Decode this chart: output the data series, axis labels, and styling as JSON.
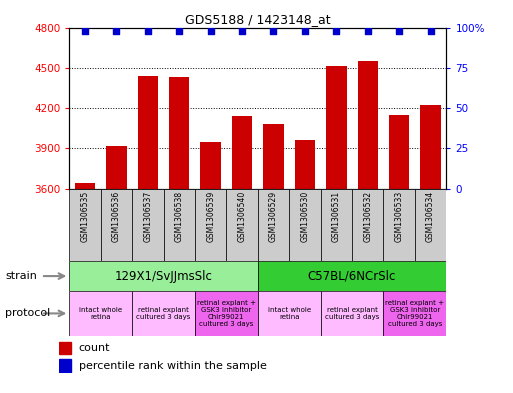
{
  "title": "GDS5188 / 1423148_at",
  "samples": [
    "GSM1306535",
    "GSM1306536",
    "GSM1306537",
    "GSM1306538",
    "GSM1306539",
    "GSM1306540",
    "GSM1306529",
    "GSM1306530",
    "GSM1306531",
    "GSM1306532",
    "GSM1306533",
    "GSM1306534"
  ],
  "counts": [
    3640,
    3920,
    4440,
    4430,
    3950,
    4140,
    4080,
    3960,
    4510,
    4550,
    4150,
    4220
  ],
  "ylim_left": [
    3600,
    4800
  ],
  "ylim_right": [
    0,
    100
  ],
  "yticks_left": [
    3600,
    3900,
    4200,
    4500,
    4800
  ],
  "yticks_right": [
    0,
    25,
    50,
    75,
    100
  ],
  "bar_color": "#cc0000",
  "dot_color": "#0000cc",
  "strain_groups": [
    {
      "label": "129X1/SvJJmsSlc",
      "start": 0,
      "end": 6,
      "color": "#99ee99"
    },
    {
      "label": "C57BL/6NCrSlc",
      "start": 6,
      "end": 12,
      "color": "#33cc33"
    }
  ],
  "protocol_groups": [
    {
      "label": "intact whole\nretina",
      "start": 0,
      "end": 2,
      "color": "#ffbbff"
    },
    {
      "label": "retinal explant\ncultured 3 days",
      "start": 2,
      "end": 4,
      "color": "#ffbbff"
    },
    {
      "label": "retinal explant +\nGSK3 inhibitor\nChir99021\ncultured 3 days",
      "start": 4,
      "end": 6,
      "color": "#ee66ee"
    },
    {
      "label": "intact whole\nretina",
      "start": 6,
      "end": 8,
      "color": "#ffbbff"
    },
    {
      "label": "retinal explant\ncultured 3 days",
      "start": 8,
      "end": 10,
      "color": "#ffbbff"
    },
    {
      "label": "retinal explant +\nGSK3 inhibitor\nChir99021\ncultured 3 days",
      "start": 10,
      "end": 12,
      "color": "#ee66ee"
    }
  ],
  "legend_count_color": "#cc0000",
  "legend_perc_color": "#0000cc",
  "legend_count_label": "count",
  "legend_perc_label": "percentile rank within the sample",
  "strain_label": "strain",
  "protocol_label": "protocol"
}
